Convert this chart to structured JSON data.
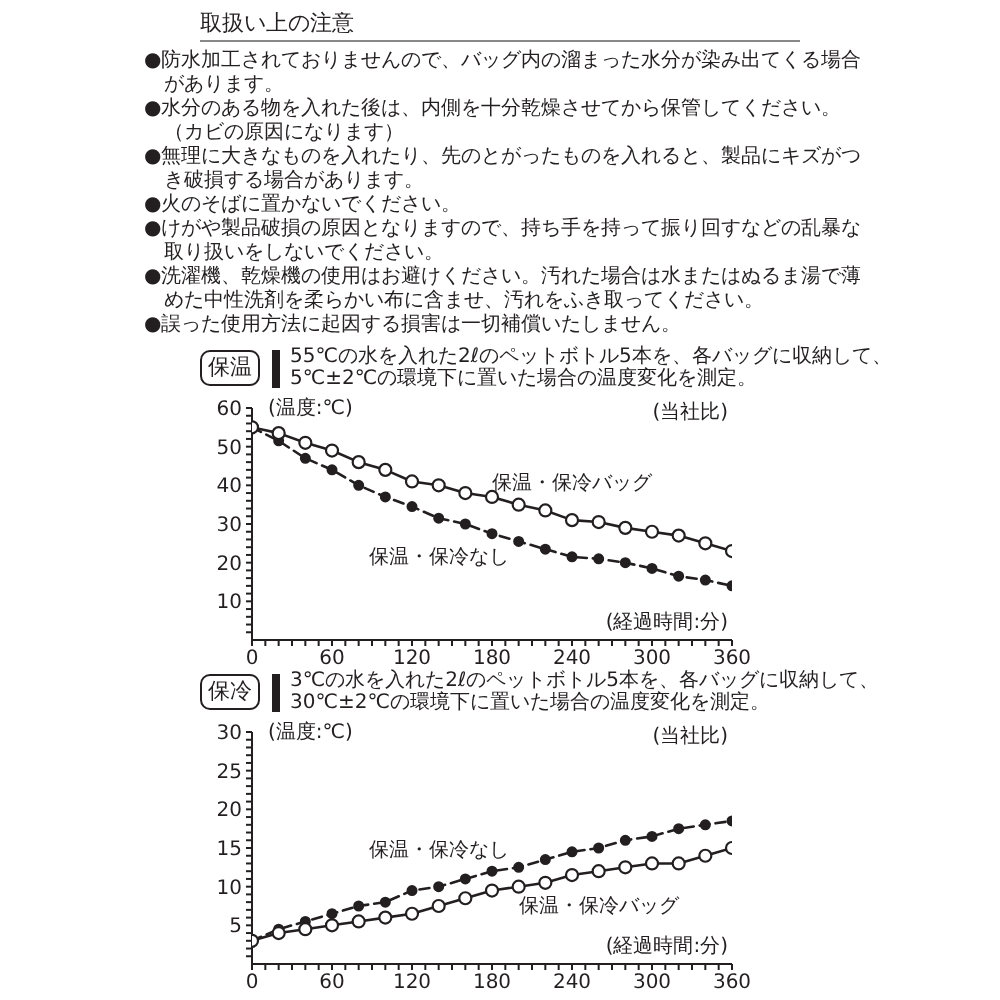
{
  "chart_data": [
    {
      "type": "other",
      "title": "取扱い上の注意",
      "annotations": [
        "●防水加工されておりませんので、バッグ内の溜まった水分が染み出てくる場合があります。",
        "●水分のある物を入れた後は、内側を十分乾燥させてから保管してください。（カビの原因になります）",
        "●無理に大きなものを入れたり、先のとがったものを入れると、製品にキズがつき破損する場合があります。",
        "●火のそばに置かないでください。",
        "●けがや製品破損の原因となりますので、持ち手を持って振り回すなどの乱暴な取り扱いをしないでください。",
        "●洗濯機、乾燥機の使用はお避けください。汚れた場合は水またはぬるま湯で薄めた中性洗剤を柔らかい布に含ませ、汚れをふき取ってください。",
        "●誤った使用方法に起因する損害は一切補償いたしません。"
      ]
    },
    {
      "type": "line",
      "title": "保温",
      "subtitle": "55℃の水を入れた2ℓのペットボトル5本を、各バッグに収納して、5℃±2℃の環境下に置いた場合の温度変化を測定。",
      "xlabel": "(経過時間:分)",
      "ylabel": "(温度:℃)",
      "annotations": [
        "(当社比)"
      ],
      "marker": "circle",
      "x": [
        0,
        20,
        40,
        60,
        80,
        100,
        120,
        140,
        160,
        180,
        200,
        220,
        240,
        260,
        280,
        300,
        320,
        340,
        360
      ],
      "series": [
        {
          "name": "保温・保冷バッグ",
          "color": "#231f20",
          "line_style": "solid",
          "values": [
            55,
            53.5,
            51,
            49,
            46,
            44,
            41,
            40,
            38,
            37,
            35,
            33.5,
            31,
            30.5,
            29,
            28,
            27,
            25,
            23
          ]
        },
        {
          "name": "保温・保冷なし",
          "color": "#231f20",
          "line_style": "dashed",
          "values": [
            55,
            51.5,
            47,
            44,
            40,
            37,
            34.5,
            31.5,
            30,
            27.5,
            25.5,
            23.5,
            21.5,
            21,
            20,
            18.5,
            16.5,
            15.5,
            14
          ]
        }
      ],
      "xlim": [
        0,
        360
      ],
      "xticks": [
        0,
        {
          "value": 10,
          "label": null
        },
        {
          "value": 20,
          "label": null
        },
        {
          "value": 30,
          "label": null
        },
        {
          "value": 40,
          "label": null
        },
        {
          "value": 50,
          "label": null
        },
        60,
        {
          "value": 70,
          "label": null
        },
        {
          "value": 80,
          "label": null
        },
        {
          "value": 90,
          "label": null
        },
        {
          "value": 100,
          "label": null
        },
        {
          "value": 110,
          "label": null
        },
        120,
        {
          "value": 130,
          "label": null
        },
        {
          "value": 140,
          "label": null
        },
        {
          "value": 150,
          "label": null
        },
        {
          "value": 160,
          "label": null
        },
        {
          "value": 170,
          "label": null
        },
        180,
        {
          "value": 190,
          "label": null
        },
        {
          "value": 200,
          "label": null
        },
        {
          "value": 210,
          "label": null
        },
        {
          "value": 220,
          "label": null
        },
        {
          "value": 230,
          "label": null
        },
        240,
        {
          "value": 250,
          "label": null
        },
        {
          "value": 260,
          "label": null
        },
        {
          "value": 270,
          "label": null
        },
        {
          "value": 280,
          "label": null
        },
        {
          "value": 290,
          "label": null
        },
        300,
        {
          "value": 310,
          "label": null
        },
        {
          "value": 320,
          "label": null
        },
        {
          "value": 330,
          "label": null
        },
        {
          "value": 340,
          "label": null
        },
        {
          "value": 350,
          "label": null
        },
        360
      ],
      "ylim": [
        0,
        60
      ],
      "yticks": [
        {
          "value": 2,
          "label": null
        },
        {
          "value": 4,
          "label": null
        },
        {
          "value": 6,
          "label": null
        },
        {
          "value": 8,
          "label": null
        },
        10,
        {
          "value": 12,
          "label": null
        },
        {
          "value": 14,
          "label": null
        },
        {
          "value": 16,
          "label": null
        },
        {
          "value": 18,
          "label": null
        },
        20,
        {
          "value": 22,
          "label": null
        },
        {
          "value": 24,
          "label": null
        },
        {
          "value": 26,
          "label": null
        },
        {
          "value": 28,
          "label": null
        },
        30,
        {
          "value": 32,
          "label": null
        },
        {
          "value": 34,
          "label": null
        },
        {
          "value": 36,
          "label": null
        },
        {
          "value": 38,
          "label": null
        },
        40,
        {
          "value": 42,
          "label": null
        },
        {
          "value": 44,
          "label": null
        },
        {
          "value": 46,
          "label": null
        },
        {
          "value": 48,
          "label": null
        },
        50,
        {
          "value": 52,
          "label": null
        },
        {
          "value": 54,
          "label": null
        },
        {
          "value": 56,
          "label": null
        },
        {
          "value": 58,
          "label": null
        },
        60
      ]
    },
    {
      "type": "line",
      "title": "保冷",
      "subtitle": "3℃の水を入れた2ℓのペットボトル5本を、各バッグに収納して、30℃±2℃の環境下に置いた場合の温度変化を測定。",
      "xlabel": "(経過時間:分)",
      "ylabel": "(温度:℃)",
      "annotations": [
        "(当社比)"
      ],
      "marker": "circle",
      "x": [
        0,
        20,
        40,
        60,
        80,
        100,
        120,
        140,
        160,
        180,
        200,
        220,
        240,
        260,
        280,
        300,
        320,
        340,
        360
      ],
      "series": [
        {
          "name": "保温・保冷バッグ",
          "color": "#231f20",
          "line_style": "solid",
          "values": [
            3,
            4,
            4.5,
            5,
            5.5,
            6,
            6.5,
            7.5,
            8.5,
            9.5,
            10,
            10.5,
            11.5,
            12,
            12.5,
            13,
            13,
            14,
            15
          ]
        },
        {
          "name": "保温・保冷なし",
          "color": "#231f20",
          "line_style": "dashed",
          "values": [
            3,
            4.5,
            5.5,
            6.5,
            7.5,
            8,
            9.5,
            10,
            11,
            12,
            12.5,
            13.5,
            14.5,
            15,
            16,
            16.5,
            17.5,
            18,
            18.5
          ]
        }
      ],
      "xlim": [
        0,
        360
      ],
      "xticks": [
        0,
        {
          "value": 10,
          "label": null
        },
        {
          "value": 20,
          "label": null
        },
        {
          "value": 30,
          "label": null
        },
        {
          "value": 40,
          "label": null
        },
        {
          "value": 50,
          "label": null
        },
        60,
        {
          "value": 70,
          "label": null
        },
        {
          "value": 80,
          "label": null
        },
        {
          "value": 90,
          "label": null
        },
        {
          "value": 100,
          "label": null
        },
        {
          "value": 110,
          "label": null
        },
        120,
        {
          "value": 130,
          "label": null
        },
        {
          "value": 140,
          "label": null
        },
        {
          "value": 150,
          "label": null
        },
        {
          "value": 160,
          "label": null
        },
        {
          "value": 170,
          "label": null
        },
        180,
        {
          "value": 190,
          "label": null
        },
        {
          "value": 200,
          "label": null
        },
        {
          "value": 210,
          "label": null
        },
        {
          "value": 220,
          "label": null
        },
        {
          "value": 230,
          "label": null
        },
        240,
        {
          "value": 250,
          "label": null
        },
        {
          "value": 260,
          "label": null
        },
        {
          "value": 270,
          "label": null
        },
        {
          "value": 280,
          "label": null
        },
        {
          "value": 290,
          "label": null
        },
        300,
        {
          "value": 310,
          "label": null
        },
        {
          "value": 320,
          "label": null
        },
        {
          "value": 330,
          "label": null
        },
        {
          "value": 340,
          "label": null
        },
        {
          "value": 350,
          "label": null
        },
        360
      ],
      "ylim": [
        0,
        30
      ],
      "yticks": [
        {
          "value": 1,
          "label": null
        },
        {
          "value": 2,
          "label": null
        },
        {
          "value": 3,
          "label": null
        },
        {
          "value": 4,
          "label": null
        },
        5,
        {
          "value": 6,
          "label": null
        },
        {
          "value": 7,
          "label": null
        },
        {
          "value": 8,
          "label": null
        },
        {
          "value": 9,
          "label": null
        },
        10,
        {
          "value": 11,
          "label": null
        },
        {
          "value": 12,
          "label": null
        },
        {
          "value": 13,
          "label": null
        },
        {
          "value": 14,
          "label": null
        },
        15,
        {
          "value": 16,
          "label": null
        },
        {
          "value": 17,
          "label": null
        },
        {
          "value": 18,
          "label": null
        },
        {
          "value": 19,
          "label": null
        },
        20,
        {
          "value": 21,
          "label": null
        },
        {
          "value": 22,
          "label": null
        },
        {
          "value": 23,
          "label": null
        },
        {
          "value": 24,
          "label": null
        },
        25,
        {
          "value": 26,
          "label": null
        },
        {
          "value": 27,
          "label": null
        },
        {
          "value": 28,
          "label": null
        },
        {
          "value": 29,
          "label": null
        },
        30
      ]
    }
  ]
}
